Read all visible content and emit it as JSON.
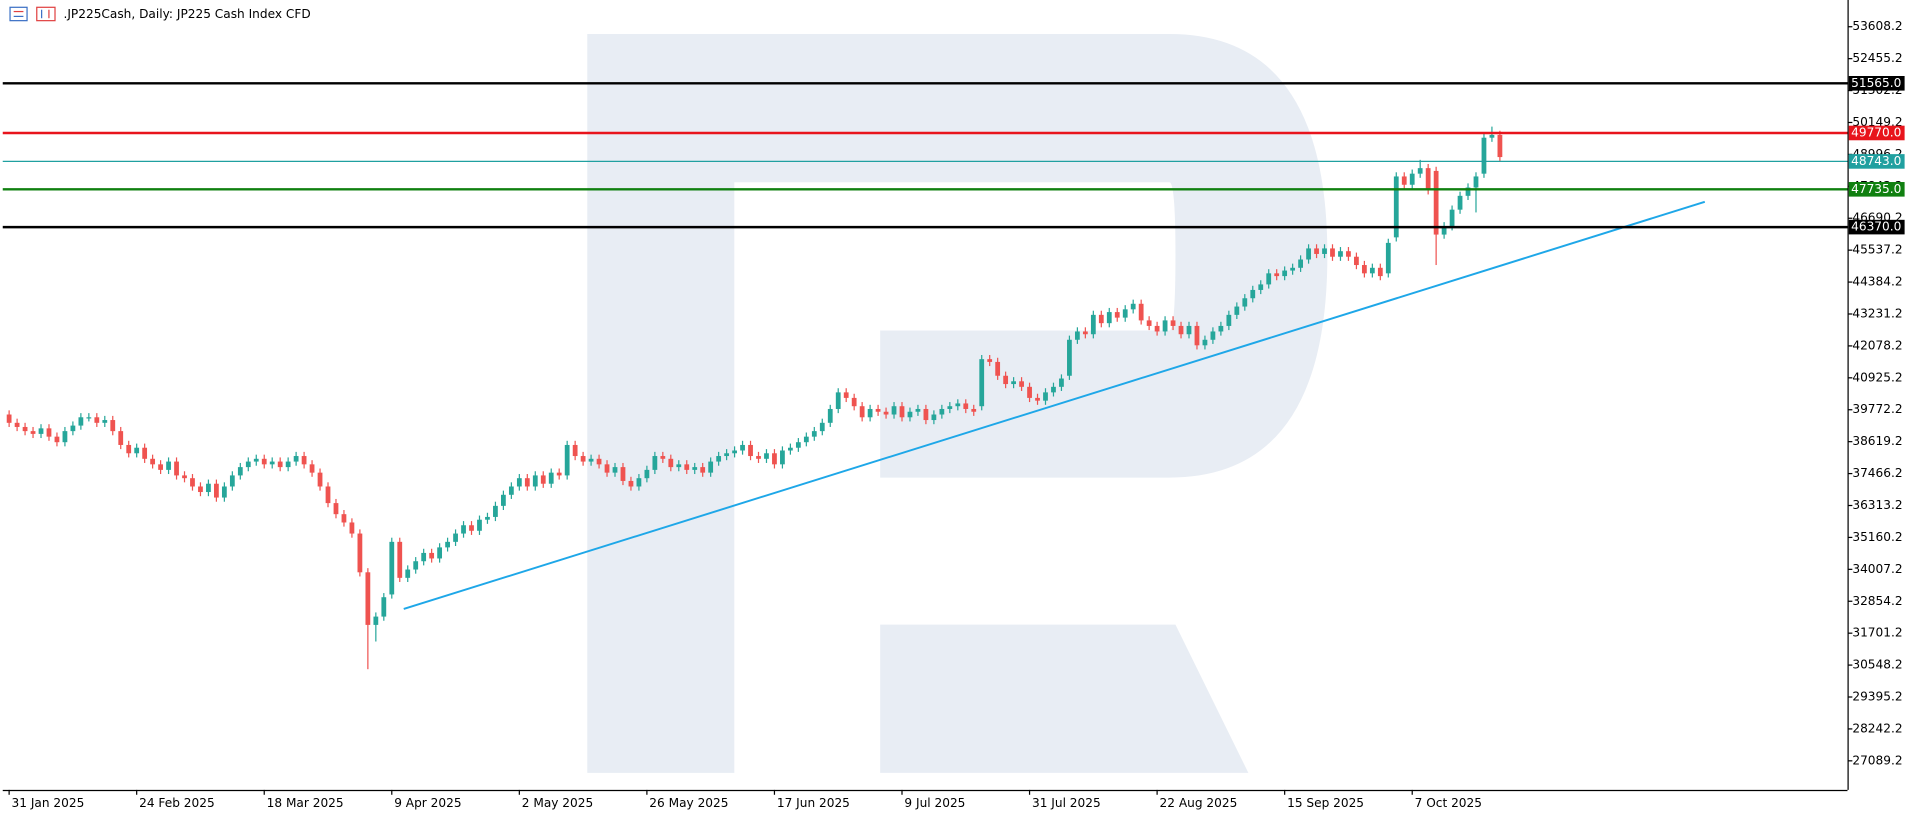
{
  "chart_data": {
    "type": "candlestick",
    "title": ".JP225Cash, Daily:  JP225 Cash Index CFD",
    "up_color": "#26a69a",
    "down_color": "#ef5350",
    "open": [
      39600,
      39300,
      39150,
      39000,
      38900,
      39100,
      38800,
      38600,
      39000,
      39200,
      39500,
      39500,
      39300,
      39400,
      39000,
      38500,
      38200,
      38400,
      38000,
      37800,
      37600,
      37900,
      37400,
      37300,
      37000,
      36800,
      37100,
      36600,
      37000,
      37400,
      37700,
      37900,
      38000,
      37800,
      37900,
      37700,
      37900,
      38100,
      37800,
      37500,
      37000,
      36400,
      36000,
      35700,
      35300,
      33900,
      32000,
      32300,
      33100,
      35000,
      33700,
      34000,
      34300,
      34600,
      34400,
      34800,
      35000,
      35300,
      35600,
      35400,
      35800,
      35900,
      36300,
      36700,
      37000,
      37300,
      37000,
      37400,
      37100,
      37500,
      37400,
      38500,
      38100,
      37900,
      38000,
      37800,
      37500,
      37700,
      37200,
      37000,
      37300,
      37600,
      38100,
      38000,
      37700,
      37800,
      37600,
      37700,
      37500,
      37900,
      38100,
      38200,
      38300,
      38500,
      38100,
      38000,
      38200,
      37800,
      38300,
      38400,
      38600,
      38800,
      39000,
      39300,
      39800,
      40400,
      40200,
      39900,
      39500,
      39800,
      39700,
      39600,
      39900,
      39500,
      39700,
      39800,
      39400,
      39600,
      39800,
      39900,
      40000,
      39800,
      39900,
      41600,
      41500,
      41000,
      40700,
      40800,
      40600,
      40200,
      40100,
      40400,
      40600,
      41000,
      42300,
      42600,
      42500,
      43200,
      42900,
      43300,
      43100,
      43400,
      43600,
      43000,
      42800,
      42600,
      43000,
      42800,
      42500,
      42800,
      42100,
      42300,
      42600,
      42800,
      43200,
      43500,
      43800,
      44100,
      44300,
      44700,
      44600,
      44800,
      44900,
      45200,
      45600,
      45400,
      45600,
      45300,
      45500,
      45300,
      45000,
      44700,
      44900,
      44700,
      46000,
      48200,
      47900,
      48300,
      48500,
      48400,
      46100,
      46400,
      47000,
      47500,
      47800,
      48300,
      49600,
      49700
    ],
    "high": [
      39750,
      39450,
      39300,
      39150,
      39250,
      39250,
      38950,
      39150,
      39350,
      39650,
      39650,
      39650,
      39550,
      39550,
      39150,
      38650,
      38550,
      38550,
      38150,
      37950,
      38050,
      38050,
      37550,
      37450,
      37150,
      37250,
      37250,
      37150,
      37550,
      37850,
      38050,
      38150,
      38150,
      38050,
      38050,
      38050,
      38250,
      38250,
      37950,
      37650,
      37150,
      36550,
      36150,
      35850,
      35450,
      34050,
      32450,
      33150,
      35150,
      35150,
      34150,
      34450,
      34750,
      34750,
      34950,
      35150,
      35450,
      35750,
      35750,
      35950,
      36050,
      36450,
      36850,
      37150,
      37450,
      37450,
      37550,
      37550,
      37650,
      37650,
      38650,
      38650,
      38250,
      38150,
      38150,
      37950,
      37850,
      37850,
      37350,
      37450,
      37750,
      38250,
      38250,
      38150,
      37950,
      37950,
      37850,
      37850,
      38050,
      38250,
      38350,
      38450,
      38650,
      38650,
      38250,
      38350,
      38350,
      38450,
      38550,
      38750,
      38950,
      39150,
      39450,
      39950,
      40550,
      40550,
      40350,
      40050,
      39950,
      39950,
      39850,
      40050,
      40050,
      39850,
      39950,
      39950,
      39750,
      39950,
      40050,
      40150,
      40150,
      39950,
      41750,
      41750,
      41650,
      41150,
      40950,
      40950,
      40750,
      40350,
      40550,
      40750,
      41050,
      42450,
      42750,
      42750,
      43350,
      43350,
      43450,
      43450,
      43550,
      43750,
      43750,
      43150,
      42950,
      43150,
      43150,
      42950,
      42950,
      42950,
      42450,
      42750,
      42950,
      43350,
      43650,
      43950,
      44250,
      44450,
      44850,
      44850,
      44950,
      45050,
      45350,
      45750,
      45750,
      45750,
      45750,
      45650,
      45650,
      45450,
      45150,
      45050,
      45050,
      45950,
      48350,
      48350,
      48450,
      48800,
      48650,
      48550,
      46550,
      47150,
      47650,
      47950,
      48350,
      49750,
      50000,
      49850
    ],
    "low": [
      39150,
      39000,
      38850,
      38750,
      38750,
      38650,
      38450,
      38450,
      38850,
      39050,
      39350,
      39150,
      39150,
      38850,
      38350,
      38050,
      38050,
      37850,
      37650,
      37450,
      37450,
      37250,
      37150,
      36850,
      36650,
      36650,
      36450,
      36450,
      36850,
      37250,
      37550,
      37750,
      37650,
      37650,
      37550,
      37550,
      37750,
      37650,
      37350,
      36850,
      36250,
      35850,
      35550,
      35150,
      33750,
      30400,
      31400,
      32150,
      32950,
      33550,
      33550,
      33850,
      34150,
      34250,
      34250,
      34650,
      34850,
      35150,
      35250,
      35250,
      35650,
      35750,
      36150,
      36550,
      36850,
      36850,
      36850,
      36950,
      36950,
      37250,
      37250,
      37950,
      37750,
      37750,
      37650,
      37350,
      37350,
      37050,
      36850,
      36850,
      37150,
      37450,
      37850,
      37550,
      37550,
      37450,
      37450,
      37350,
      37350,
      37750,
      37950,
      38050,
      38150,
      37950,
      37850,
      37850,
      37650,
      37650,
      38150,
      38250,
      38450,
      38650,
      38850,
      39150,
      39650,
      40050,
      39750,
      39350,
      39350,
      39550,
      39450,
      39450,
      39350,
      39350,
      39550,
      39250,
      39250,
      39450,
      39650,
      39750,
      39650,
      39550,
      39750,
      41350,
      40850,
      40550,
      40550,
      40450,
      40050,
      39950,
      39950,
      40250,
      40450,
      40850,
      42150,
      42350,
      42350,
      42750,
      42750,
      42950,
      42950,
      43250,
      42850,
      42650,
      42450,
      42450,
      42650,
      42350,
      42350,
      41950,
      41950,
      42150,
      42450,
      42650,
      43050,
      43350,
      43650,
      43950,
      44150,
      44450,
      44450,
      44650,
      44750,
      45050,
      45250,
      45250,
      45150,
      45150,
      45150,
      44850,
      44550,
      44550,
      44450,
      44550,
      45850,
      47750,
      47750,
      48150,
      47550,
      45000,
      45950,
      46250,
      46850,
      47350,
      46900,
      48150,
      49450,
      48750
    ],
    "close": [
      39300,
      39150,
      39000,
      38900,
      39100,
      38800,
      38600,
      39000,
      39200,
      39500,
      39500,
      39300,
      39400,
      39000,
      38500,
      38200,
      38400,
      38000,
      37800,
      37600,
      37900,
      37400,
      37300,
      37000,
      36800,
      37100,
      36600,
      37000,
      37400,
      37700,
      37900,
      38000,
      37800,
      37900,
      37700,
      37900,
      38100,
      37800,
      37500,
      37000,
      36400,
      36000,
      35700,
      35300,
      33900,
      32000,
      32300,
      33000,
      35000,
      33700,
      34000,
      34300,
      34600,
      34400,
      34800,
      35000,
      35300,
      35600,
      35400,
      35800,
      35900,
      36300,
      36700,
      37000,
      37300,
      37000,
      37400,
      37100,
      37500,
      37400,
      38500,
      38100,
      37900,
      38000,
      37800,
      37500,
      37700,
      37200,
      37000,
      37300,
      37600,
      38100,
      38000,
      37700,
      37800,
      37600,
      37700,
      37500,
      37900,
      38100,
      38200,
      38300,
      38500,
      38100,
      38000,
      38200,
      37800,
      38300,
      38400,
      38600,
      38800,
      39000,
      39300,
      39800,
      40400,
      40200,
      39900,
      39500,
      39800,
      39700,
      39600,
      39900,
      39500,
      39700,
      39800,
      39400,
      39600,
      39800,
      39900,
      40000,
      39800,
      39700,
      41600,
      41500,
      41000,
      40700,
      40800,
      40600,
      40200,
      40100,
      40400,
      40600,
      40900,
      42300,
      42600,
      42500,
      43200,
      42900,
      43300,
      43100,
      43400,
      43600,
      43000,
      42800,
      42600,
      43000,
      42800,
      42500,
      42800,
      42100,
      42300,
      42600,
      42800,
      43200,
      43500,
      43800,
      44100,
      44300,
      44700,
      44600,
      44800,
      44900,
      45200,
      45600,
      45400,
      45600,
      45300,
      45500,
      45300,
      45000,
      44700,
      44900,
      44600,
      45800,
      48200,
      47900,
      48300,
      48500,
      47700,
      46100,
      46400,
      47000,
      47500,
      47800,
      48200,
      49600,
      49700,
      48900
    ],
    "xlim": [
      -0.8,
      230.6
    ],
    "xticks": [
      {
        "value": 0,
        "label": "31 Jan 2025"
      },
      {
        "value": 16,
        "label": "24 Feb 2025"
      },
      {
        "value": 32,
        "label": "18 Mar 2025"
      },
      {
        "value": 48,
        "label": "9 Apr 2025"
      },
      {
        "value": 64,
        "label": "2 May 2025"
      },
      {
        "value": 80,
        "label": "26 May 2025"
      },
      {
        "value": 96,
        "label": "17 Jun 2025"
      },
      {
        "value": 112,
        "label": "9 Jul 2025"
      },
      {
        "value": 128,
        "label": "31 Jul 2025"
      },
      {
        "value": 144,
        "label": "22 Aug 2025"
      },
      {
        "value": 160,
        "label": "15 Sep 2025"
      },
      {
        "value": 176,
        "label": "7 Oct 2025"
      }
    ],
    "ylim": [
      26039,
      54574
    ],
    "yticks": [
      53608.2,
      52455.2,
      51302.2,
      50149.2,
      48996.2,
      47843.2,
      46690.2,
      45537.2,
      44384.2,
      43231.2,
      42078.2,
      40925.2,
      39772.2,
      38619.2,
      37466.2,
      36313.2,
      35160.2,
      34007.2,
      32854.2,
      31701.2,
      30548.2,
      29395.2,
      28242.2,
      27089.2
    ],
    "levels": [
      {
        "value": 51565.0,
        "label": "51565.0",
        "color": "#000000",
        "width": 2
      },
      {
        "value": 49770.0,
        "label": "49770.0",
        "color": "#e8141c",
        "width": 2
      },
      {
        "value": 48743.0,
        "label": "48743.0",
        "color": "#20a0a0",
        "width": 1
      },
      {
        "value": 47735.0,
        "label": "47735.0",
        "color": "#108010",
        "width": 2
      },
      {
        "value": 46370.0,
        "label": "46370.0",
        "color": "#000000",
        "width": 2
      }
    ],
    "trendline": {
      "x": [
        49.5,
        212.7
      ],
      "y": [
        32575,
        47285
      ],
      "color": "#1ea7e8"
    }
  }
}
